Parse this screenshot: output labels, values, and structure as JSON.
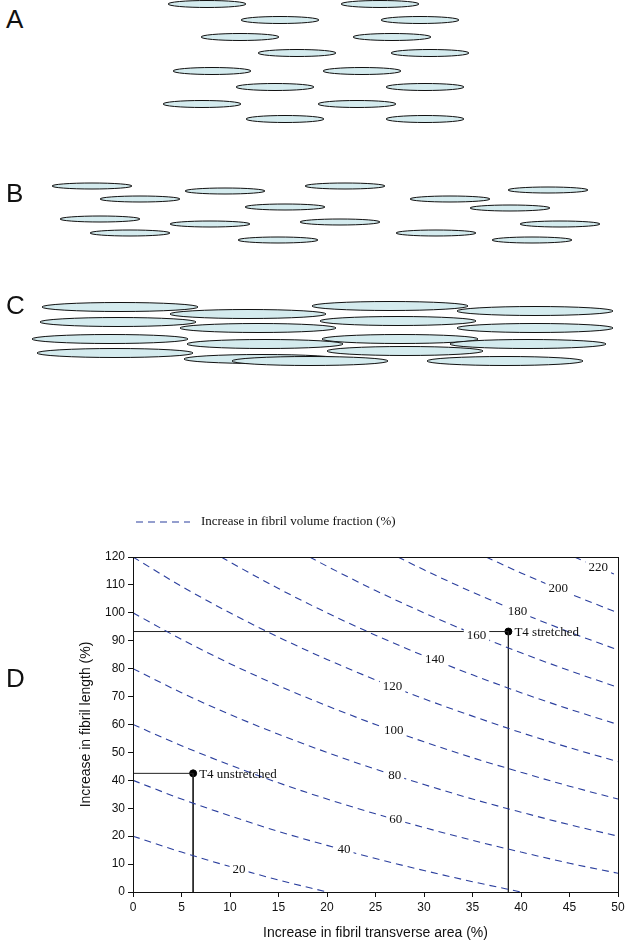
{
  "figure_panels": [
    {
      "label": "A"
    },
    {
      "label": "B"
    },
    {
      "label": "C"
    }
  ],
  "chart_data": {
    "type": "contour",
    "panel_label": "D",
    "legend_label": "Increase in fibril volume fraction (%)",
    "x_label": "Increase in fibril transverse area (%)",
    "y_label": "Increase in fibril length (%)",
    "xlim": [
      0,
      50
    ],
    "ylim": [
      0,
      120
    ],
    "xticks": [
      0,
      5,
      10,
      15,
      20,
      25,
      30,
      35,
      40,
      45,
      50
    ],
    "yticks": [
      0,
      10,
      20,
      30,
      40,
      50,
      60,
      70,
      80,
      90,
      100,
      110,
      120
    ],
    "grid": false,
    "color": "#2b3f9e",
    "line_style": "dashed",
    "contours": [
      {
        "level": 20,
        "x": [
          0,
          5,
          10,
          15,
          20
        ],
        "values": [
          20,
          14.3,
          9.1,
          4.3,
          0
        ]
      },
      {
        "level": 40,
        "x": [
          0,
          5,
          10,
          15,
          20,
          25,
          30,
          35,
          40
        ],
        "values": [
          40,
          33.3,
          27.3,
          21.7,
          16.7,
          12,
          7.7,
          3.7,
          0
        ]
      },
      {
        "level": 60,
        "x": [
          0,
          5,
          10,
          15,
          20,
          25,
          30,
          35,
          40,
          45,
          50
        ],
        "values": [
          60,
          52.4,
          45.5,
          39.1,
          33.3,
          28,
          23.1,
          18.5,
          14.3,
          10.3,
          6.7
        ]
      },
      {
        "level": 80,
        "x": [
          0,
          5,
          10,
          15,
          20,
          25,
          30,
          35,
          40,
          45,
          50
        ],
        "values": [
          80,
          71.4,
          63.6,
          56.5,
          50,
          44,
          38.5,
          33.3,
          28.6,
          24.1,
          20
        ]
      },
      {
        "level": 100,
        "x": [
          0,
          5,
          10,
          15,
          20,
          25,
          30,
          35,
          40,
          45,
          50
        ],
        "values": [
          100,
          90.5,
          81.8,
          73.9,
          66.7,
          60,
          53.8,
          48.1,
          42.9,
          37.9,
          33.3
        ]
      },
      {
        "level": 120,
        "x": [
          0,
          5,
          10,
          15,
          20,
          25,
          30,
          35,
          40,
          45,
          50
        ],
        "values": [
          120,
          109.5,
          100,
          91.3,
          83.3,
          76,
          69.2,
          63,
          57.1,
          51.7,
          46.7
        ]
      },
      {
        "level": 140,
        "x": [
          9.1,
          10,
          15,
          20,
          25,
          30,
          35,
          40,
          45,
          50
        ],
        "values": [
          120,
          118.2,
          108.7,
          100,
          92,
          84.6,
          77.8,
          71.4,
          65.5,
          60
        ]
      },
      {
        "level": 160,
        "x": [
          18.2,
          20,
          25,
          30,
          35,
          40,
          45,
          50
        ],
        "values": [
          120,
          116.7,
          108,
          100,
          92.6,
          85.7,
          79.3,
          73.3
        ]
      },
      {
        "level": 180,
        "x": [
          27.3,
          30,
          35,
          40,
          45,
          50
        ],
        "values": [
          120,
          115.4,
          107.4,
          100,
          93.1,
          86.7
        ]
      },
      {
        "level": 200,
        "x": [
          36.4,
          40,
          45,
          50
        ],
        "values": [
          120,
          114.3,
          106.9,
          100
        ]
      },
      {
        "level": 220,
        "x": [
          45.5,
          50
        ],
        "values": [
          120,
          113.3
        ]
      }
    ],
    "points": [
      {
        "label": "T4 unstretched",
        "x": 6.2,
        "y": 42.5
      },
      {
        "label": "T4 stretched",
        "x": 38.7,
        "y": 93.3
      }
    ]
  }
}
